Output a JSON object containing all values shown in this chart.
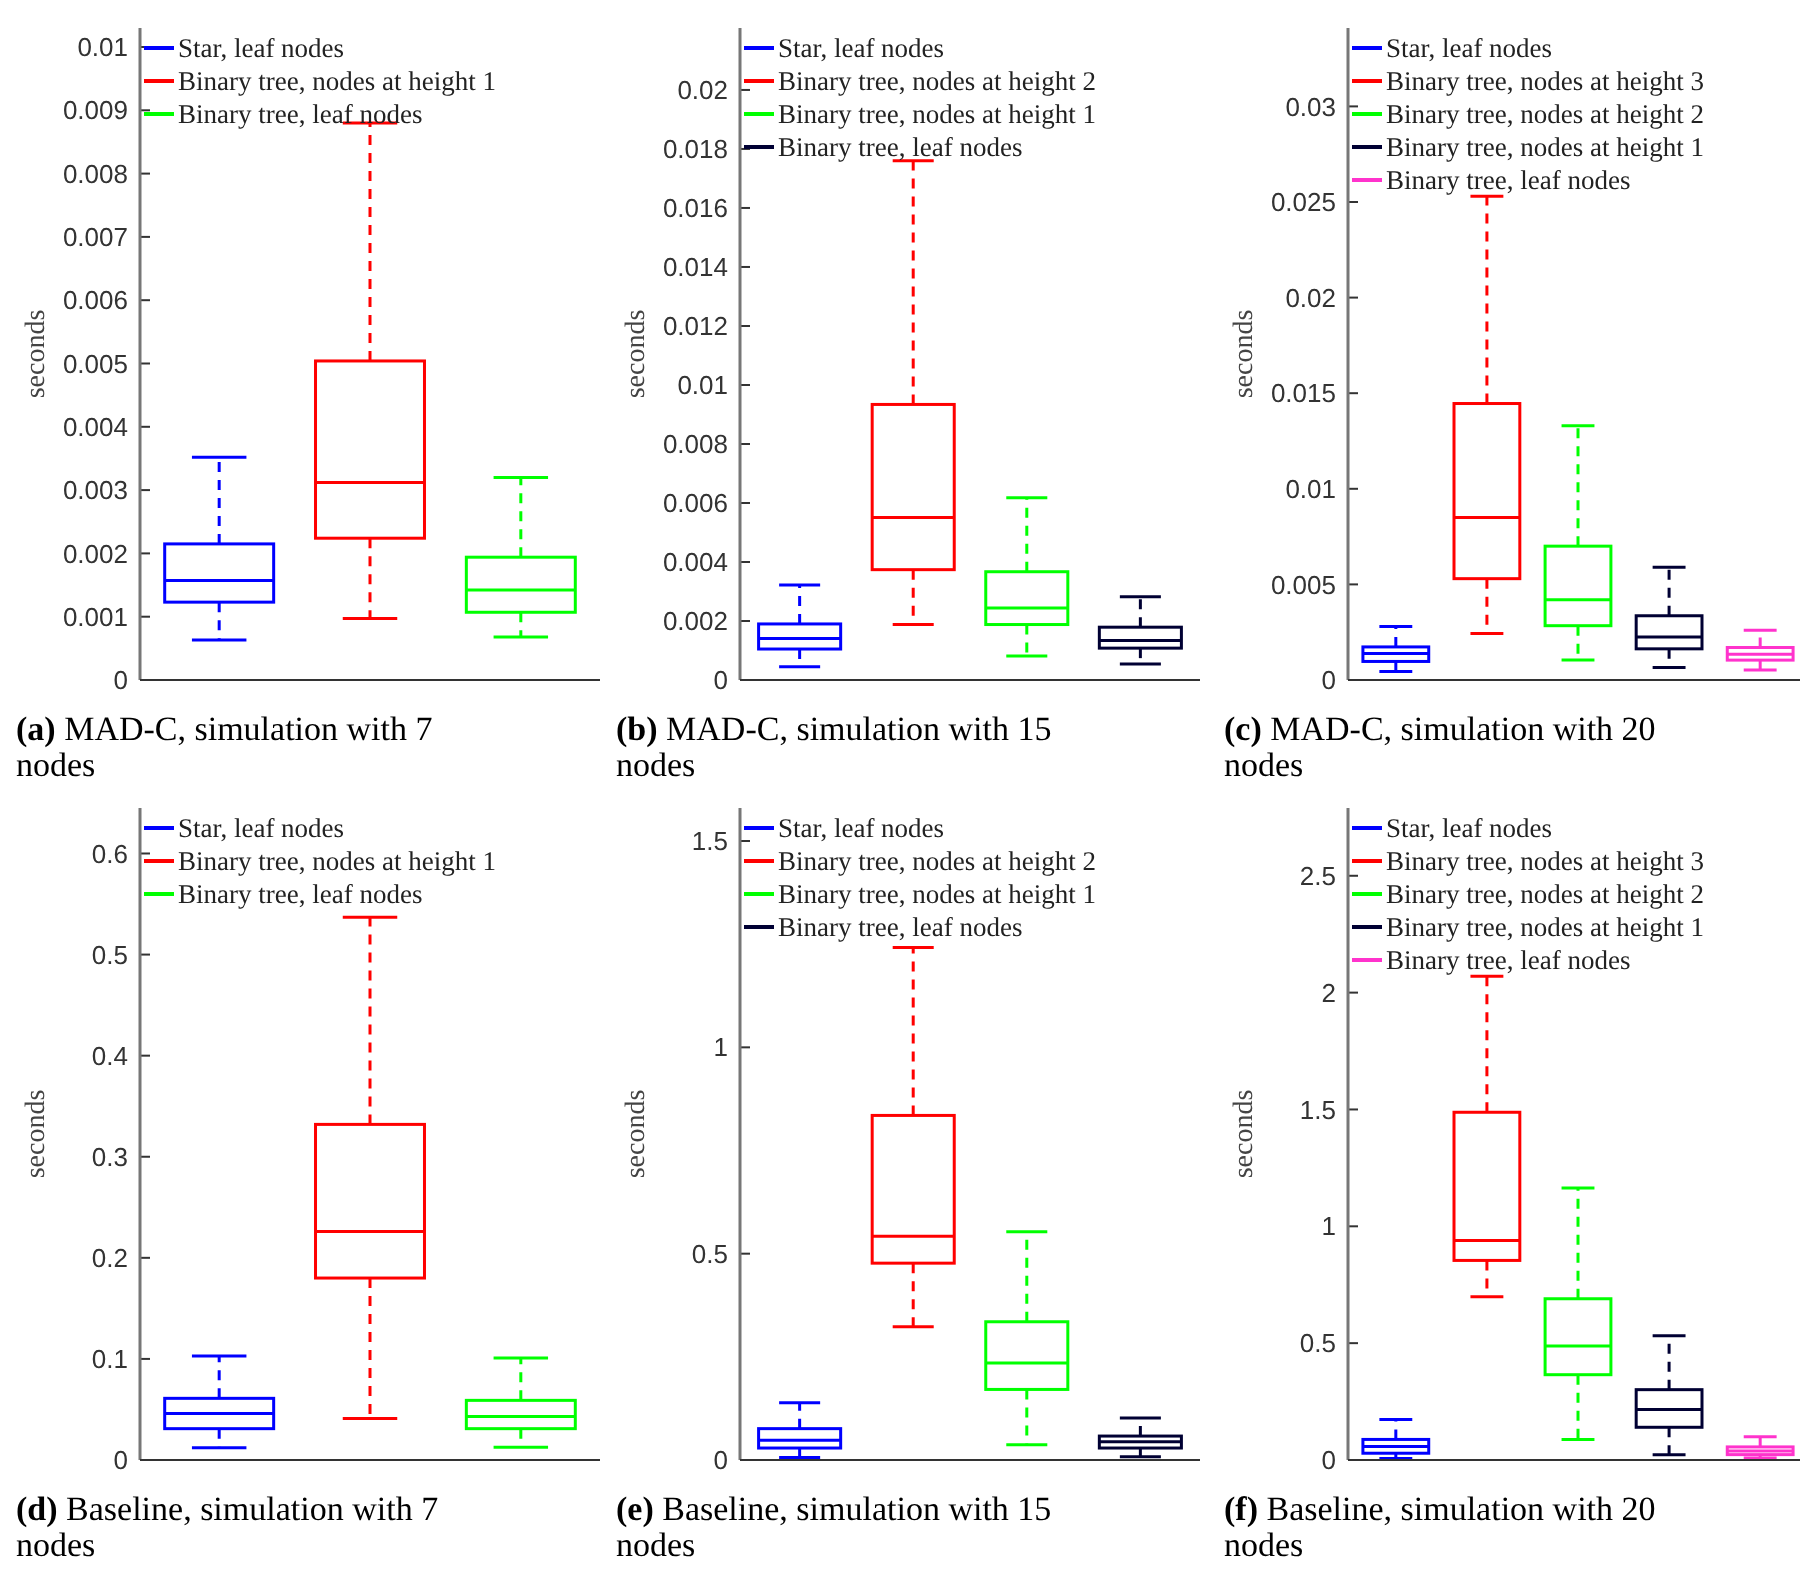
{
  "chart_data": [
    {
      "type": "box",
      "title": "(a) MAD-C, simulation with 7 nodes",
      "ylabel": "seconds",
      "categories": [
        null,
        null,
        null
      ],
      "ylim": [
        0,
        0.0103
      ],
      "yticks": [
        0,
        0.001,
        0.002,
        0.003,
        0.004,
        0.005,
        0.006,
        0.007,
        0.008,
        0.009,
        0.01
      ],
      "legend": "top left",
      "series": [
        {
          "name": "Star, leaf nodes",
          "color": "#0000ff",
          "boxes": [
            {
              "low": 0.00063,
              "q1": 0.00123,
              "median": 0.00157,
              "q3": 0.00215,
              "high": 0.00352
            },
            null,
            null
          ]
        },
        {
          "name": "Binary tree, nodes at height 1",
          "color": "#ff0000",
          "boxes": [
            null,
            {
              "low": 0.00097,
              "q1": 0.00224,
              "median": 0.00312,
              "q3": 0.00504,
              "high": 0.0088
            },
            null
          ]
        },
        {
          "name": "Binary tree, leaf nodes",
          "color": "#00ff00",
          "boxes": [
            null,
            null,
            {
              "low": 0.00068,
              "q1": 0.00107,
              "median": 0.00142,
              "q3": 0.00194,
              "high": 0.0032
            }
          ]
        }
      ]
    },
    {
      "type": "box",
      "title": "(b) MAD-C, simulation with 15 nodes",
      "ylabel": "seconds",
      "categories": [
        null,
        null,
        null,
        null
      ],
      "ylim": [
        0,
        0.0221
      ],
      "yticks": [
        0,
        0.002,
        0.004,
        0.006,
        0.008,
        0.01,
        0.012,
        0.014,
        0.016,
        0.018,
        0.02
      ],
      "legend": "top left",
      "series": [
        {
          "name": "Star, leaf nodes",
          "color": "#0000ff",
          "boxes": [
            {
              "low": 0.00045,
              "q1": 0.00105,
              "median": 0.00141,
              "q3": 0.0019,
              "high": 0.00322
            },
            null,
            null,
            null
          ]
        },
        {
          "name": "Binary tree, nodes at height 2",
          "color": "#ff0000",
          "boxes": [
            null,
            {
              "low": 0.00188,
              "q1": 0.00374,
              "median": 0.00551,
              "q3": 0.00934,
              "high": 0.0176
            },
            null,
            null
          ]
        },
        {
          "name": "Binary tree, nodes at height 1",
          "color": "#00ff00",
          "boxes": [
            null,
            null,
            {
              "low": 0.00081,
              "q1": 0.00188,
              "median": 0.00244,
              "q3": 0.00367,
              "high": 0.00618
            },
            null
          ]
        },
        {
          "name": "Binary tree, leaf nodes",
          "color": "#000033",
          "boxes": [
            null,
            null,
            null,
            {
              "low": 0.00054,
              "q1": 0.00108,
              "median": 0.00134,
              "q3": 0.00179,
              "high": 0.00282
            }
          ]
        }
      ]
    },
    {
      "type": "box",
      "title": "(c) MAD-C, simulation with 20 nodes",
      "ylabel": "seconds",
      "categories": [
        null,
        null,
        null,
        null,
        null
      ],
      "ylim": [
        0,
        0.0341
      ],
      "yticks": [
        0,
        0.005,
        0.01,
        0.015,
        0.02,
        0.025,
        0.03
      ],
      "legend": "top left",
      "series": [
        {
          "name": "Star, leaf nodes",
          "color": "#0000ff",
          "boxes": [
            {
              "low": 0.00045,
              "q1": 0.00097,
              "median": 0.00139,
              "q3": 0.00173,
              "high": 0.0028
            },
            null,
            null,
            null,
            null
          ]
        },
        {
          "name": "Binary tree, nodes at height 3",
          "color": "#ff0000",
          "boxes": [
            null,
            {
              "low": 0.00243,
              "q1": 0.0053,
              "median": 0.0085,
              "q3": 0.01446,
              "high": 0.0253
            },
            null,
            null,
            null
          ]
        },
        {
          "name": "Binary tree, nodes at height 2",
          "color": "#00ff00",
          "boxes": [
            null,
            null,
            {
              "low": 0.00104,
              "q1": 0.00284,
              "median": 0.0042,
              "q3": 0.007,
              "high": 0.0133
            },
            null,
            null
          ]
        },
        {
          "name": "Binary tree, nodes at height 1",
          "color": "#000033",
          "boxes": [
            null,
            null,
            null,
            {
              "low": 0.00066,
              "q1": 0.00163,
              "median": 0.00225,
              "q3": 0.00336,
              "high": 0.0059
            },
            null
          ]
        },
        {
          "name": "Binary tree, leaf nodes",
          "color": "#ff33cc",
          "boxes": [
            null,
            null,
            null,
            null,
            {
              "low": 0.00052,
              "q1": 0.00104,
              "median": 0.00135,
              "q3": 0.0017,
              "high": 0.0026
            }
          ]
        }
      ]
    },
    {
      "type": "box",
      "title": "(d) Baseline, simulation with 7 nodes",
      "ylabel": "seconds",
      "categories": [
        null,
        null,
        null
      ],
      "ylim": [
        0,
        0.645
      ],
      "yticks": [
        0,
        0.1,
        0.2,
        0.3,
        0.4,
        0.5,
        0.6
      ],
      "legend": "top left",
      "series": [
        {
          "name": "Star, leaf nodes",
          "color": "#0000ff",
          "boxes": [
            {
              "low": 0.012,
              "q1": 0.031,
              "median": 0.046,
              "q3": 0.061,
              "high": 0.103
            },
            null,
            null
          ]
        },
        {
          "name": "Binary tree, nodes at height 1",
          "color": "#ff0000",
          "boxes": [
            null,
            {
              "low": 0.041,
              "q1": 0.18,
              "median": 0.226,
              "q3": 0.332,
              "high": 0.537
            },
            null
          ]
        },
        {
          "name": "Binary tree, leaf nodes",
          "color": "#00ff00",
          "boxes": [
            null,
            null,
            {
              "low": 0.0125,
              "q1": 0.031,
              "median": 0.043,
              "q3": 0.059,
              "high": 0.101
            }
          ]
        }
      ]
    },
    {
      "type": "box",
      "title": "(e) Baseline, simulation with 15 nodes",
      "ylabel": "seconds",
      "categories": [
        null,
        null,
        null,
        null
      ],
      "ylim": [
        0,
        1.58
      ],
      "yticks": [
        0,
        0.5,
        1,
        1.5
      ],
      "legend": "top left",
      "series": [
        {
          "name": "Star, leaf nodes",
          "color": "#0000ff",
          "boxes": [
            {
              "low": 0.006,
              "q1": 0.029,
              "median": 0.048,
              "q3": 0.076,
              "high": 0.139
            },
            null,
            null,
            null
          ]
        },
        {
          "name": "Binary tree, nodes at height 2",
          "color": "#ff0000",
          "boxes": [
            null,
            {
              "low": 0.323,
              "q1": 0.477,
              "median": 0.542,
              "q3": 0.835,
              "high": 1.242
            },
            null,
            null
          ]
        },
        {
          "name": "Binary tree, nodes at height 1",
          "color": "#00ff00",
          "boxes": [
            null,
            null,
            {
              "low": 0.037,
              "q1": 0.171,
              "median": 0.235,
              "q3": 0.335,
              "high": 0.553
            },
            null
          ]
        },
        {
          "name": "Binary tree, leaf nodes",
          "color": "#000033",
          "boxes": [
            null,
            null,
            null,
            {
              "low": 0.008,
              "q1": 0.029,
              "median": 0.044,
              "q3": 0.058,
              "high": 0.102
            }
          ]
        }
      ]
    },
    {
      "type": "box",
      "title": "(f) Baseline, simulation with 20 nodes",
      "ylabel": "seconds",
      "categories": [
        null,
        null,
        null,
        null,
        null
      ],
      "ylim": [
        0,
        2.79
      ],
      "yticks": [
        0,
        0.5,
        1,
        1.5,
        2,
        2.5
      ],
      "legend": "top left",
      "series": [
        {
          "name": "Star, leaf nodes",
          "color": "#0000ff",
          "boxes": [
            {
              "low": 0.006,
              "q1": 0.029,
              "median": 0.058,
              "q3": 0.088,
              "high": 0.173
            },
            null,
            null,
            null,
            null
          ]
        },
        {
          "name": "Binary tree, nodes at height 3",
          "color": "#ff0000",
          "boxes": [
            null,
            {
              "low": 0.699,
              "q1": 0.854,
              "median": 0.939,
              "q3": 1.488,
              "high": 2.07
            },
            null,
            null,
            null
          ]
        },
        {
          "name": "Binary tree, nodes at height 2",
          "color": "#00ff00",
          "boxes": [
            null,
            null,
            {
              "low": 0.088,
              "q1": 0.365,
              "median": 0.488,
              "q3": 0.69,
              "high": 1.164
            },
            null,
            null
          ]
        },
        {
          "name": "Binary tree, nodes at height 1",
          "color": "#000033",
          "boxes": [
            null,
            null,
            null,
            {
              "low": 0.023,
              "q1": 0.14,
              "median": 0.216,
              "q3": 0.301,
              "high": 0.532
            },
            null
          ]
        },
        {
          "name": "Binary tree, leaf nodes",
          "color": "#ff33cc",
          "boxes": [
            null,
            null,
            null,
            null,
            {
              "low": 0.009,
              "q1": 0.023,
              "median": 0.038,
              "q3": 0.056,
              "high": 0.099
            }
          ]
        }
      ]
    }
  ]
}
